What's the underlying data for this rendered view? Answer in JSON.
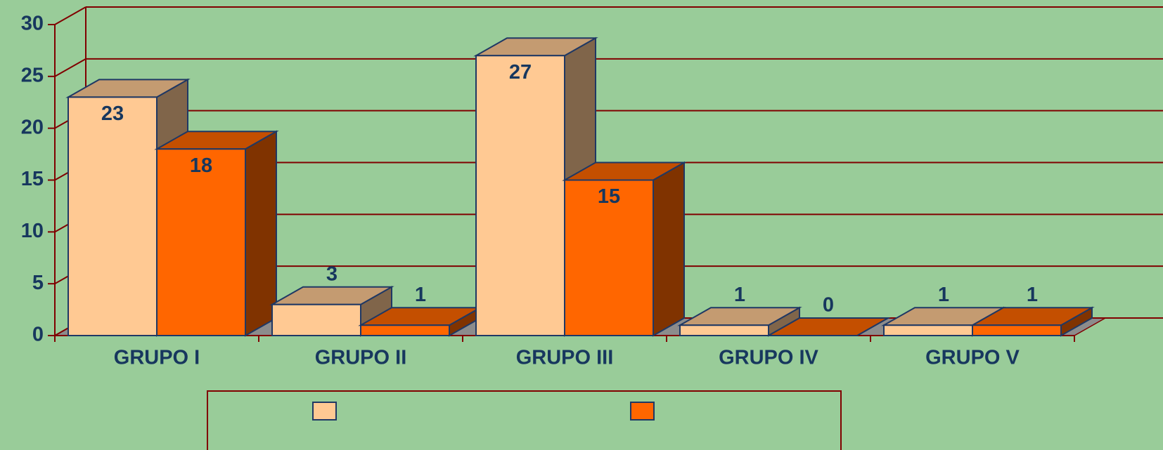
{
  "chart_data": {
    "type": "bar3d",
    "categories": [
      "GRUPO I",
      "GRUPO II",
      "GRUPO III",
      "GRUPO IV",
      "GRUPO V"
    ],
    "series": [
      {
        "color": "#ffc993",
        "values": [
          23,
          3,
          27,
          1,
          1
        ]
      },
      {
        "color": "#ff6600",
        "values": [
          18,
          1,
          15,
          0,
          1
        ]
      }
    ],
    "ylim": [
      0,
      30
    ],
    "yticks": [
      0,
      5,
      10,
      15,
      20,
      25,
      30
    ],
    "grid": true,
    "legend": "bottom"
  }
}
